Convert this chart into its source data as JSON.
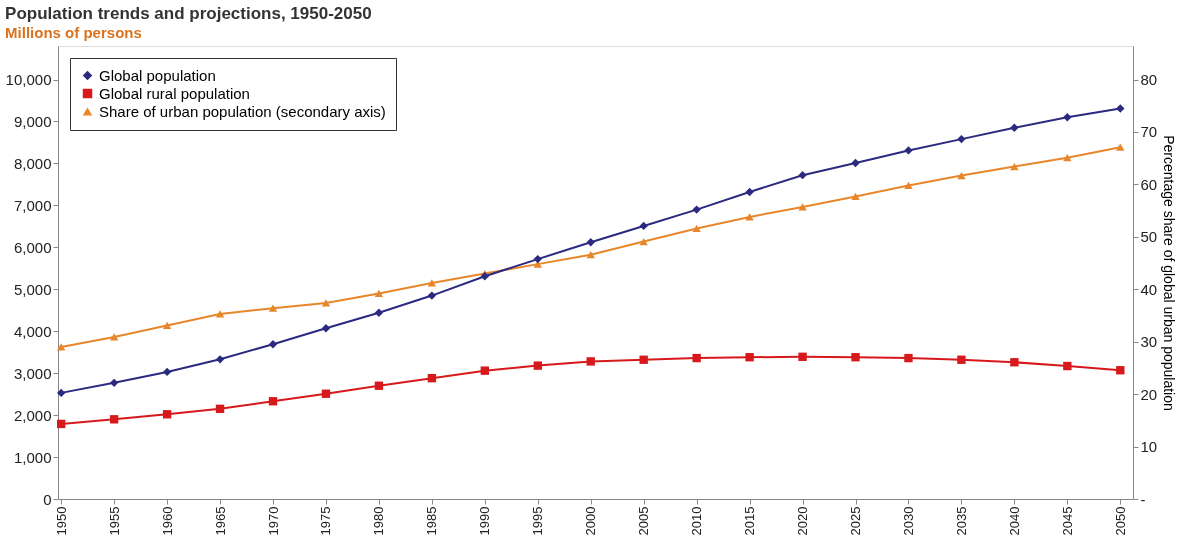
{
  "chart_data": {
    "type": "line",
    "title": "Population trends and projections, 1950-2050",
    "subtitle": "Millions of persons",
    "y2label": "Percentage share of global urban population",
    "x": [
      1950,
      1955,
      1960,
      1965,
      1970,
      1975,
      1980,
      1985,
      1990,
      1995,
      2000,
      2005,
      2010,
      2015,
      2020,
      2025,
      2030,
      2035,
      2040,
      2045,
      2050
    ],
    "series": [
      {
        "name": "Global population",
        "color": "#2b2a80",
        "marker": "diamond",
        "values": [
          2530,
          2770,
          3030,
          3330,
          3690,
          4070,
          4440,
          4850,
          5310,
          5720,
          6120,
          6510,
          6900,
          7320,
          7720,
          8010,
          8310,
          8580,
          8850,
          9100,
          9310
        ]
      },
      {
        "name": "Global rural population",
        "color": "#d7191c",
        "marker": "square",
        "values": [
          1790,
          1900,
          2020,
          2150,
          2330,
          2510,
          2700,
          2880,
          3060,
          3180,
          3280,
          3320,
          3360,
          3380,
          3390,
          3380,
          3360,
          3320,
          3260,
          3170,
          3070
        ]
      },
      {
        "name": "Share of urban population (secondary axis)",
        "color": "#e8862a",
        "marker": "triangle",
        "axis": "y2",
        "values": [
          29.0,
          30.9,
          33.1,
          35.3,
          36.4,
          37.4,
          39.2,
          41.2,
          43.0,
          44.8,
          46.6,
          49.1,
          51.6,
          53.8,
          55.7,
          57.7,
          59.8,
          61.7,
          63.4,
          65.1,
          67.1
        ]
      }
    ],
    "xlim": [
      1949.7,
      2051.2
    ],
    "xticks": [
      1950,
      1955,
      1960,
      1965,
      1970,
      1975,
      1980,
      1985,
      1990,
      1995,
      2000,
      2005,
      2010,
      2015,
      2020,
      2025,
      2030,
      2035,
      2040,
      2045,
      2050
    ],
    "ylim": [
      0,
      10800
    ],
    "yticks": [
      0,
      {
        "value": 1000,
        "label": "1,000"
      },
      {
        "value": 2000,
        "label": "2,000"
      },
      {
        "value": 3000,
        "label": "3,000"
      },
      {
        "value": 4000,
        "label": "4,000"
      },
      {
        "value": 5000,
        "label": "5,000"
      },
      {
        "value": 6000,
        "label": "6,000"
      },
      {
        "value": 7000,
        "label": "7,000"
      },
      {
        "value": 8000,
        "label": "8,000"
      },
      {
        "value": 9000,
        "label": "9,000"
      },
      {
        "value": 10000,
        "label": "10,000"
      }
    ],
    "y2lim": [
      0,
      86.4
    ],
    "y2ticks": [
      {
        "value": 0,
        "label": "-"
      },
      10,
      20,
      30,
      40,
      50,
      60,
      70,
      80
    ],
    "grid": false,
    "legend": "top left",
    "line_style": "solid"
  }
}
